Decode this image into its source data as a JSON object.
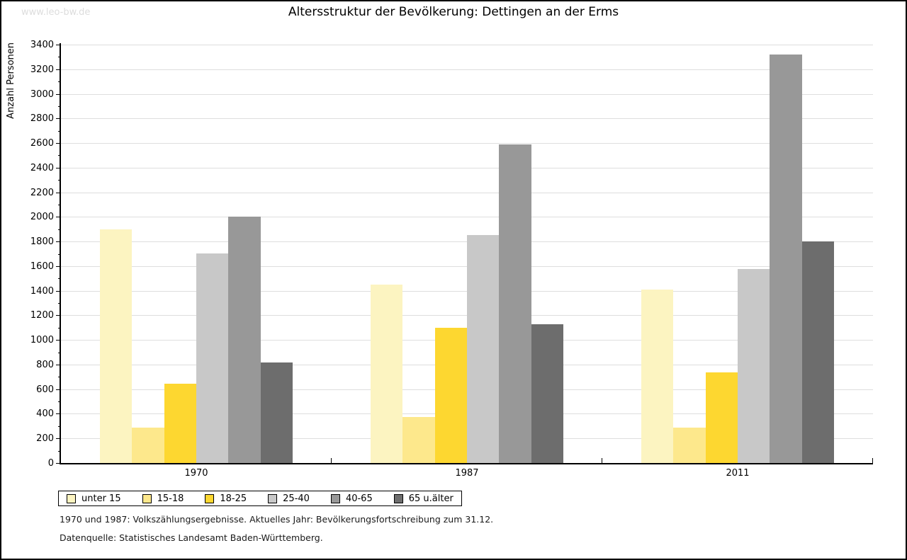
{
  "watermark": "www.leo-bw.de",
  "title": "Altersstruktur der Bevölkerung: Dettingen an der Erms",
  "footnotes": {
    "line1": "1970 und 1987: Volkszählungsergebnisse. Aktuelles Jahr: Bevölkerungsfortschreibung zum 31.12.",
    "line2": "Datenquelle: Statistisches Landesamt Baden-Württemberg."
  },
  "chart_data": {
    "type": "bar",
    "title": "Altersstruktur der Bevölkerung: Dettingen an der Erms",
    "xlabel": "",
    "ylabel": "Anzahl Personen",
    "categories": [
      "1970",
      "1987",
      "2011"
    ],
    "series": [
      {
        "name": "unter 15",
        "color": "#FCF4C1",
        "values": [
          1900,
          1450,
          1410
        ]
      },
      {
        "name": "15-18",
        "color": "#FDE88C",
        "values": [
          290,
          375,
          290
        ]
      },
      {
        "name": "18-25",
        "color": "#FDD730",
        "values": [
          645,
          1100,
          735
        ]
      },
      {
        "name": "25-40",
        "color": "#C8C8C8",
        "values": [
          1705,
          1850,
          1575
        ]
      },
      {
        "name": "40-65",
        "color": "#989898",
        "values": [
          2000,
          2590,
          3320
        ]
      },
      {
        "name": "65 u.älter",
        "color": "#6D6D6D",
        "values": [
          815,
          1125,
          1800
        ]
      }
    ],
    "ylim": [
      0,
      3400
    ],
    "ytick_step": 200,
    "y_minor_tick_step": 100,
    "grid": true,
    "gridline_color": "#dedede",
    "legend_position": "bottom-left",
    "axis_color": "#000000"
  }
}
